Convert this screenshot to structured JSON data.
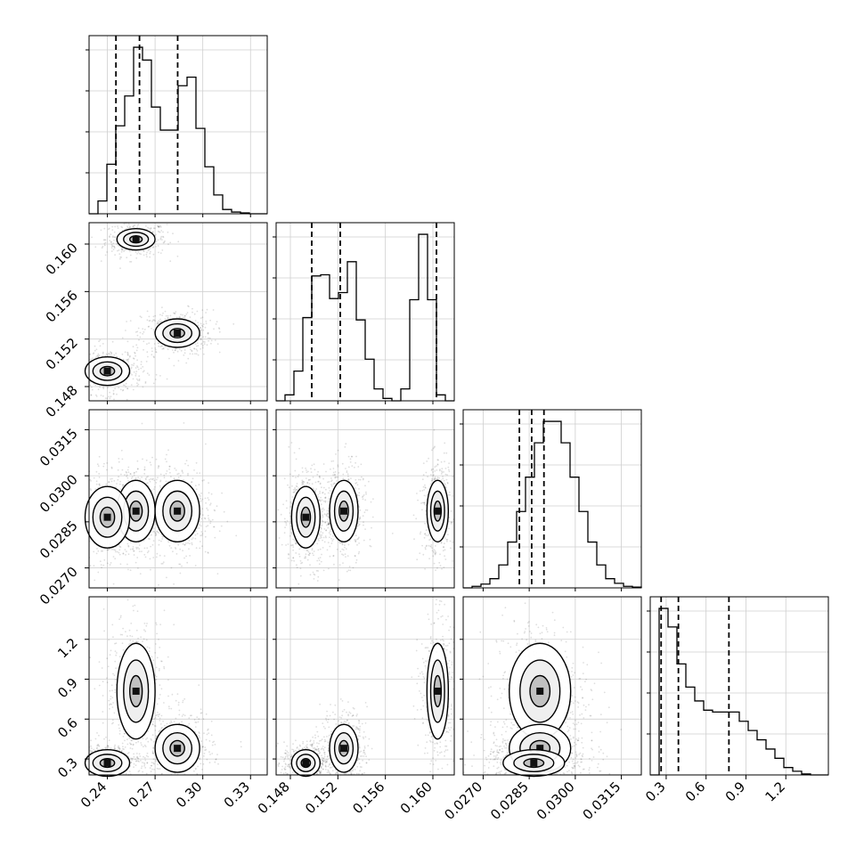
{
  "chart_data": {
    "type": "corner",
    "grid": true,
    "parameters": [
      {
        "ticks": [
          "0.24",
          "0.27",
          "0.30",
          "0.33"
        ],
        "tick_values": [
          0.24,
          0.27,
          0.3,
          0.33
        ],
        "range": [
          0.2285,
          0.3405
        ]
      },
      {
        "ticks": [
          "0.148",
          "0.152",
          "0.156",
          "0.160"
        ],
        "tick_values": [
          0.148,
          0.152,
          0.156,
          0.16
        ],
        "range": [
          0.1468,
          0.1618
        ]
      },
      {
        "ticks": [
          "0.0270",
          "0.0285",
          "0.0300",
          "0.0315"
        ],
        "tick_values": [
          0.027,
          0.0285,
          0.03,
          0.0315
        ],
        "range": [
          0.02635,
          0.03215
        ]
      },
      {
        "ticks": [
          "0.3",
          "0.6",
          "0.9",
          "1.2"
        ],
        "tick_values": [
          0.3,
          0.6,
          0.9,
          1.2
        ],
        "range": [
          0.18,
          1.52
        ]
      }
    ],
    "histograms": [
      {
        "values": [
          0,
          15,
          58,
          103,
          138,
          195,
          180,
          125,
          98,
          98,
          150,
          160,
          100,
          55,
          22,
          5,
          2,
          1,
          0,
          0
        ],
        "quantile_lines": [
          0.2454,
          0.2602,
          0.2842
        ]
      },
      {
        "values": [
          0,
          5,
          25,
          70,
          105,
          106,
          86,
          91,
          117,
          68,
          35,
          10,
          2,
          0,
          10,
          85,
          140,
          85,
          5,
          0
        ],
        "quantile_lines": [
          0.1498,
          0.1522,
          0.1603
        ]
      },
      {
        "values": [
          0,
          2,
          5,
          12,
          30,
          60,
          100,
          145,
          190,
          218,
          218,
          190,
          145,
          100,
          60,
          30,
          12,
          6,
          2,
          1
        ],
        "quantile_lines": [
          0.02818,
          0.02858,
          0.02898
        ]
      },
      {
        "values": [
          0,
          180,
          160,
          120,
          95,
          80,
          70,
          68,
          68,
          68,
          58,
          48,
          38,
          28,
          18,
          8,
          4,
          1,
          0,
          0
        ],
        "quantile_lines": [
          0.262,
          0.392,
          0.772
        ]
      }
    ],
    "clusters": [
      {
        "means": [
          0.258,
          0.1604,
          0.02885,
          0.81
        ],
        "sd": [
          0.006,
          0.00045,
          0.0005,
          0.18
        ],
        "weight": 0.33
      },
      {
        "means": [
          0.284,
          0.1525,
          0.02885,
          0.38
        ],
        "sd": [
          0.007,
          0.0006,
          0.0005,
          0.09
        ],
        "weight": 0.33
      },
      {
        "means": [
          0.24,
          0.1493,
          0.02865,
          0.27
        ],
        "sd": [
          0.007,
          0.0006,
          0.0005,
          0.05
        ],
        "weight": 0.34
      }
    ]
  }
}
